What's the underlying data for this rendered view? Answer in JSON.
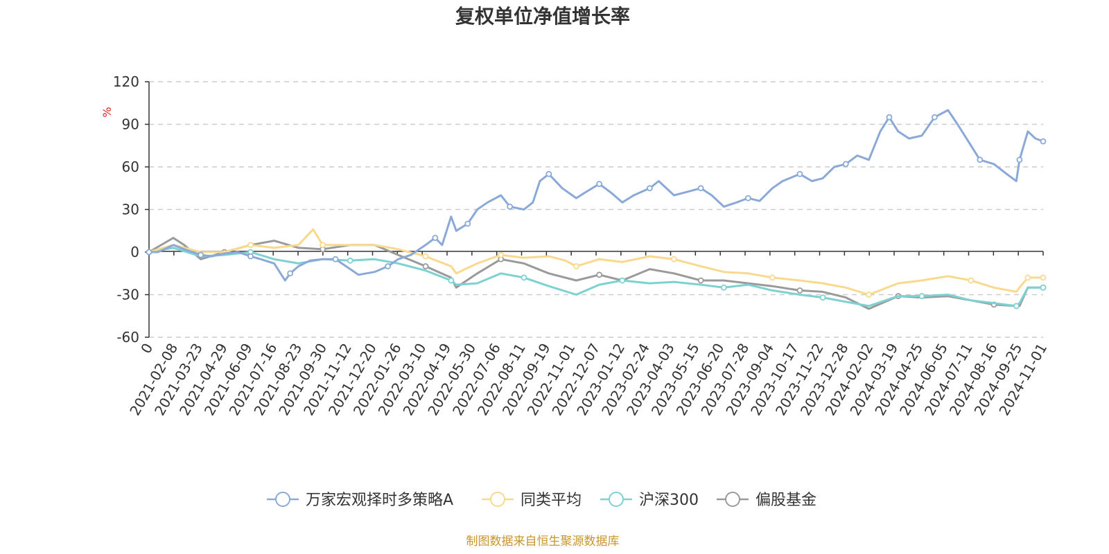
{
  "chart_data": {
    "type": "line",
    "title": "复权单位净值增长率",
    "ylabel": "%",
    "ylim": [
      -60,
      120
    ],
    "yticks": [
      120,
      90,
      60,
      30,
      0,
      -30,
      -60
    ],
    "grid": true,
    "legend_position": "bottom",
    "source": "制图数据来自恒生聚源数据库",
    "x_start": "2021-01-01",
    "x_end": "2024-11-01",
    "xticks": [
      "0",
      "2021-02-08",
      "2021-03-23",
      "2021-04-29",
      "2021-06-09",
      "2021-07-16",
      "2021-08-23",
      "2021-09-30",
      "2021-11-12",
      "2021-12-20",
      "2022-01-26",
      "2022-03-10",
      "2022-04-19",
      "2022-05-30",
      "2022-07-06",
      "2022-08-11",
      "2022-09-19",
      "2022-11-01",
      "2022-12-07",
      "2023-01-12",
      "2023-02-24",
      "2023-04-03",
      "2023-05-15",
      "2023-06-20",
      "2023-07-28",
      "2023-09-04",
      "2023-10-17",
      "2023-11-22",
      "2023-12-28",
      "2024-02-02",
      "2024-03-19",
      "2024-04-25",
      "2024-06-05",
      "2024-07-11",
      "2024-08-16",
      "2024-09-25",
      "2024-11-01"
    ],
    "series": [
      {
        "name": "万家宏观择时多策略A",
        "color": "#8aa9d8",
        "x": [
          "2021-01-01",
          "2021-01-15",
          "2021-02-08",
          "2021-02-25",
          "2021-03-23",
          "2021-04-10",
          "2021-04-29",
          "2021-05-20",
          "2021-06-09",
          "2021-06-25",
          "2021-07-16",
          "2021-08-02",
          "2021-08-10",
          "2021-08-23",
          "2021-09-10",
          "2021-09-30",
          "2021-10-20",
          "2021-11-12",
          "2021-11-25",
          "2021-12-20",
          "2022-01-10",
          "2022-01-26",
          "2022-02-15",
          "2022-03-10",
          "2022-03-25",
          "2022-04-05",
          "2022-04-19",
          "2022-04-27",
          "2022-05-15",
          "2022-05-30",
          "2022-06-15",
          "2022-07-06",
          "2022-07-20",
          "2022-08-11",
          "2022-08-25",
          "2022-09-05",
          "2022-09-19",
          "2022-10-10",
          "2022-11-01",
          "2022-11-15",
          "2022-12-07",
          "2022-12-25",
          "2023-01-12",
          "2023-01-30",
          "2023-02-24",
          "2023-03-10",
          "2023-04-03",
          "2023-04-20",
          "2023-05-15",
          "2023-06-01",
          "2023-06-20",
          "2023-07-10",
          "2023-07-28",
          "2023-08-15",
          "2023-09-04",
          "2023-09-20",
          "2023-10-17",
          "2023-11-05",
          "2023-11-22",
          "2023-12-10",
          "2023-12-28",
          "2024-01-15",
          "2024-02-02",
          "2024-02-20",
          "2024-03-05",
          "2024-03-19",
          "2024-04-05",
          "2024-04-25",
          "2024-05-15",
          "2024-06-05",
          "2024-06-20",
          "2024-07-11",
          "2024-07-25",
          "2024-08-16",
          "2024-09-05",
          "2024-09-20",
          "2024-09-25",
          "2024-10-08",
          "2024-10-20",
          "2024-11-01"
        ],
        "values": [
          0,
          0,
          5,
          2,
          -2,
          -3,
          -1,
          0,
          -3,
          -5,
          -8,
          -20,
          -15,
          -10,
          -6,
          -5,
          -5,
          -12,
          -16,
          -14,
          -10,
          -5,
          -2,
          5,
          10,
          5,
          25,
          15,
          20,
          30,
          35,
          40,
          32,
          30,
          35,
          50,
          55,
          45,
          38,
          42,
          48,
          42,
          35,
          40,
          45,
          50,
          40,
          42,
          45,
          40,
          32,
          35,
          38,
          36,
          45,
          50,
          55,
          50,
          52,
          60,
          62,
          68,
          65,
          85,
          95,
          85,
          80,
          82,
          95,
          100,
          90,
          75,
          65,
          62,
          55,
          50,
          65,
          85,
          80,
          78
        ]
      },
      {
        "name": "同类平均",
        "color": "#f8d98e",
        "x": [
          "2021-01-01",
          "2021-02-08",
          "2021-03-23",
          "2021-04-29",
          "2021-06-09",
          "2021-07-16",
          "2021-08-23",
          "2021-09-15",
          "2021-09-30",
          "2021-11-12",
          "2021-12-20",
          "2022-01-26",
          "2022-03-10",
          "2022-04-19",
          "2022-04-27",
          "2022-05-30",
          "2022-07-06",
          "2022-08-11",
          "2022-09-19",
          "2022-10-15",
          "2022-11-01",
          "2022-12-07",
          "2023-01-12",
          "2023-02-24",
          "2023-04-03",
          "2023-05-15",
          "2023-06-20",
          "2023-07-28",
          "2023-09-04",
          "2023-10-17",
          "2023-11-22",
          "2023-12-28",
          "2024-02-02",
          "2024-03-19",
          "2024-04-25",
          "2024-06-05",
          "2024-07-11",
          "2024-08-16",
          "2024-09-20",
          "2024-09-25",
          "2024-10-08",
          "2024-11-01"
        ],
        "values": [
          0,
          5,
          0,
          0,
          5,
          3,
          5,
          16,
          5,
          5,
          5,
          2,
          -3,
          -10,
          -15,
          -8,
          -2,
          -4,
          -3,
          -6,
          -10,
          -5,
          -7,
          -3,
          -5,
          -10,
          -14,
          -15,
          -18,
          -20,
          -22,
          -25,
          -30,
          -22,
          -20,
          -17,
          -20,
          -25,
          -28,
          -25,
          -18,
          -18
        ]
      },
      {
        "name": "沪深300",
        "color": "#7dd1d1",
        "x": [
          "2021-01-01",
          "2021-02-08",
          "2021-03-23",
          "2021-04-29",
          "2021-06-09",
          "2021-07-16",
          "2021-08-23",
          "2021-09-30",
          "2021-11-12",
          "2021-12-20",
          "2022-01-26",
          "2022-03-10",
          "2022-04-19",
          "2022-04-27",
          "2022-05-30",
          "2022-07-06",
          "2022-08-11",
          "2022-09-19",
          "2022-11-01",
          "2022-12-07",
          "2023-01-12",
          "2023-02-24",
          "2023-04-03",
          "2023-05-15",
          "2023-06-20",
          "2023-07-28",
          "2023-09-04",
          "2023-10-17",
          "2023-11-22",
          "2023-12-28",
          "2024-02-02",
          "2024-03-19",
          "2024-04-25",
          "2024-06-05",
          "2024-07-11",
          "2024-08-16",
          "2024-09-20",
          "2024-09-25",
          "2024-10-08",
          "2024-11-01"
        ],
        "values": [
          0,
          3,
          -3,
          -2,
          0,
          -5,
          -8,
          -5,
          -6,
          -5,
          -8,
          -13,
          -20,
          -23,
          -22,
          -15,
          -18,
          -24,
          -30,
          -23,
          -20,
          -22,
          -21,
          -23,
          -25,
          -23,
          -27,
          -30,
          -32,
          -35,
          -38,
          -31,
          -31,
          -30,
          -34,
          -36,
          -38,
          -36,
          -25,
          -25
        ]
      },
      {
        "name": "偏股基金",
        "color": "#9a9a9a",
        "x": [
          "2021-01-01",
          "2021-02-08",
          "2021-02-25",
          "2021-03-23",
          "2021-04-29",
          "2021-06-09",
          "2021-07-16",
          "2021-08-23",
          "2021-09-30",
          "2021-11-12",
          "2021-12-20",
          "2022-01-26",
          "2022-03-10",
          "2022-04-19",
          "2022-04-27",
          "2022-05-30",
          "2022-07-06",
          "2022-08-11",
          "2022-09-19",
          "2022-11-01",
          "2022-12-07",
          "2023-01-12",
          "2023-02-24",
          "2023-04-03",
          "2023-05-15",
          "2023-06-20",
          "2023-07-28",
          "2023-09-04",
          "2023-10-17",
          "2023-11-22",
          "2023-12-28",
          "2024-02-02",
          "2024-03-19",
          "2024-04-25",
          "2024-06-05",
          "2024-07-11",
          "2024-08-16",
          "2024-09-20",
          "2024-09-25",
          "2024-10-08",
          "2024-11-01"
        ],
        "values": [
          0,
          10,
          5,
          -5,
          0,
          5,
          8,
          3,
          2,
          5,
          5,
          -2,
          -10,
          -18,
          -25,
          -15,
          -5,
          -8,
          -15,
          -20,
          -16,
          -20,
          -12,
          -15,
          -20,
          -20,
          -22,
          -24,
          -27,
          -28,
          -32,
          -40,
          -31,
          -32,
          -31,
          -34,
          -37,
          -38,
          -38,
          -25,
          -25
        ]
      }
    ]
  }
}
